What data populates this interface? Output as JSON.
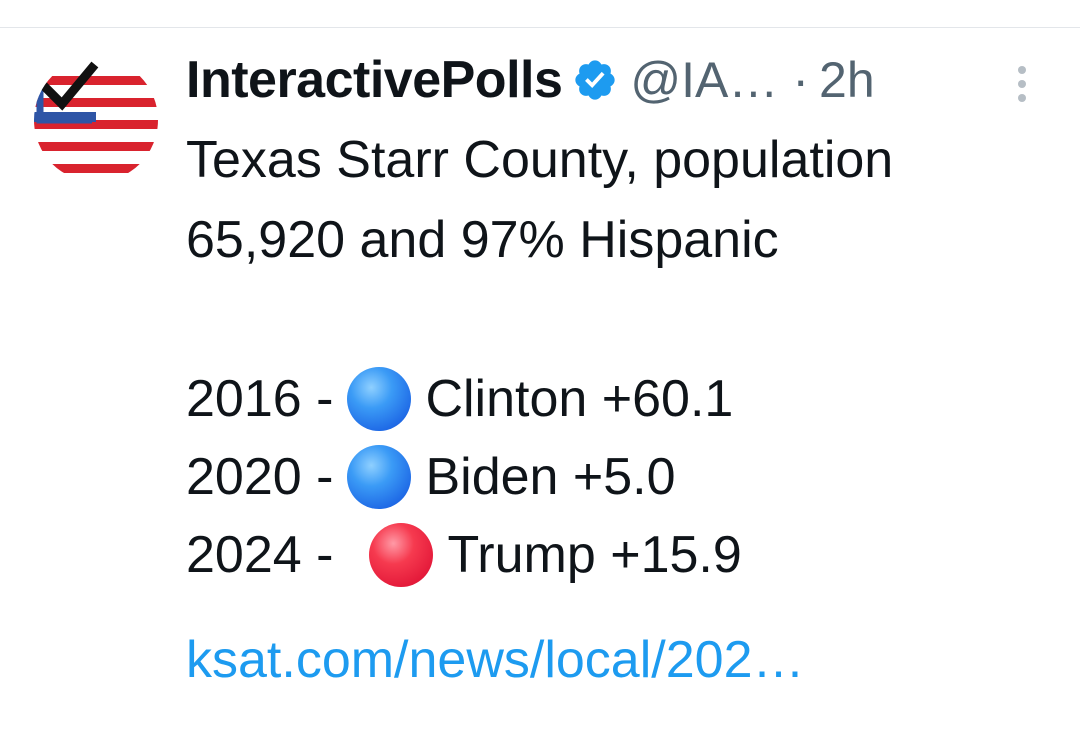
{
  "tweet": {
    "author": {
      "display_name": "InteractivePolls",
      "handle": "@IA…",
      "verified": true,
      "avatar_icon": "checkbox-flag-icon"
    },
    "separator": "·",
    "time": "2h",
    "text_lines": [
      "Texas Starr County, population",
      "65,920 and 97% Hispanic"
    ],
    "results": [
      {
        "year": "2016 -",
        "color": "blue",
        "result": "Clinton +60.1"
      },
      {
        "year": "2020 -",
        "color": "blue",
        "result": "Biden +5.0"
      },
      {
        "year": "2024 -",
        "color": "red",
        "result": "Trump +15.9"
      }
    ],
    "link": "ksat.com/news/local/202…"
  },
  "colors": {
    "link": "#1d9bf0",
    "verified": "#1d9bf0",
    "muted": "#536471",
    "blue_circle": "#1f6ae6",
    "red_circle": "#e41a3a"
  }
}
